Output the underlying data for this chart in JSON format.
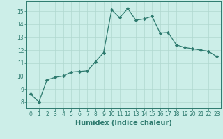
{
  "x": [
    0,
    1,
    2,
    3,
    4,
    5,
    6,
    7,
    8,
    9,
    10,
    11,
    12,
    13,
    14,
    15,
    16,
    17,
    18,
    19,
    20,
    21,
    22,
    23
  ],
  "y": [
    8.6,
    8.0,
    9.7,
    9.9,
    10.0,
    10.3,
    10.35,
    10.4,
    11.1,
    11.8,
    15.1,
    14.5,
    15.2,
    14.3,
    14.4,
    14.6,
    13.3,
    13.35,
    12.4,
    12.2,
    12.1,
    12.0,
    11.9,
    11.5
  ],
  "xlabel": "Humidex (Indice chaleur)",
  "ylim": [
    7.5,
    15.75
  ],
  "xlim": [
    -0.5,
    23.5
  ],
  "yticks": [
    8,
    9,
    10,
    11,
    12,
    13,
    14,
    15
  ],
  "xticks": [
    0,
    1,
    2,
    3,
    4,
    5,
    6,
    7,
    8,
    9,
    10,
    11,
    12,
    13,
    14,
    15,
    16,
    17,
    18,
    19,
    20,
    21,
    22,
    23
  ],
  "line_color": "#2d7a6e",
  "marker": "D",
  "marker_size": 2.2,
  "bg_color": "#cceee8",
  "grid_color": "#b0d8cf",
  "tick_fontsize": 5.5,
  "xlabel_fontsize": 7.0
}
